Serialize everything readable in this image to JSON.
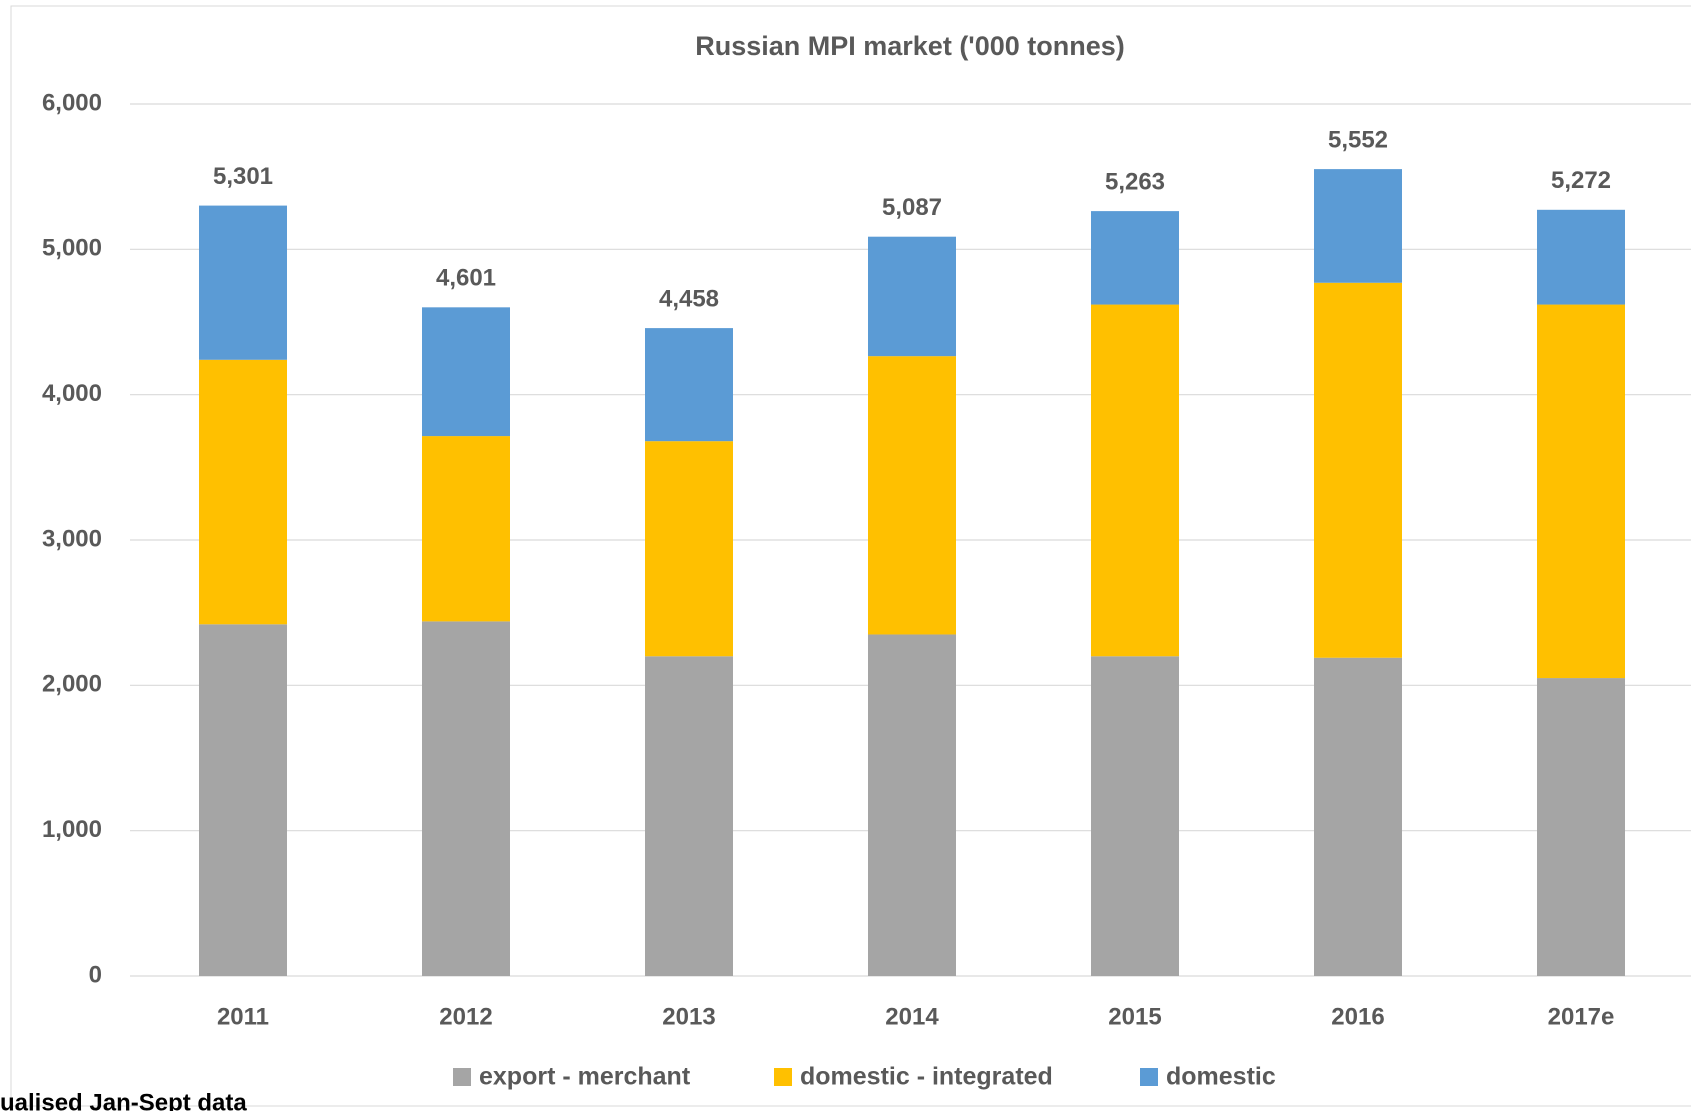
{
  "chart_data": {
    "type": "stacked_bar",
    "title": "Russian MPI market  ('000 tonnes)",
    "categories": [
      "2011",
      "2012",
      "2013",
      "2014",
      "2015",
      "2016",
      "2017e"
    ],
    "series": [
      {
        "name": "export - merchant",
        "color": "#a5a5a5",
        "values": [
          2420,
          2440,
          2200,
          2350,
          2200,
          2190,
          2050
        ]
      },
      {
        "name": "domestic - integrated",
        "color": "#ffc000",
        "values": [
          1820,
          1275,
          1480,
          1915,
          2420,
          2580,
          2570
        ]
      },
      {
        "name": "domestic",
        "color": "#5b9bd5",
        "values": [
          1061,
          886,
          778,
          822,
          643,
          782,
          652
        ]
      }
    ],
    "totals": [
      5301,
      4601,
      4458,
      5087,
      5263,
      5552,
      5272
    ],
    "total_labels": [
      "5,301",
      "4,601",
      "4,458",
      "5,087",
      "5,263",
      "5,552",
      "5,272"
    ],
    "ylim": [
      0,
      6000
    ],
    "yticks": [
      0,
      {
        "value": 1000,
        "label": "1,000"
      },
      {
        "value": 2000,
        "label": "2,000"
      },
      {
        "value": 3000,
        "label": "3,000"
      },
      {
        "value": 4000,
        "label": "4,000"
      },
      {
        "value": 5000,
        "label": "5,000"
      },
      {
        "value": 6000,
        "label": "6,000"
      }
    ],
    "grid": true,
    "legend": "bottom",
    "note": "ualised Jan-Sept data"
  }
}
